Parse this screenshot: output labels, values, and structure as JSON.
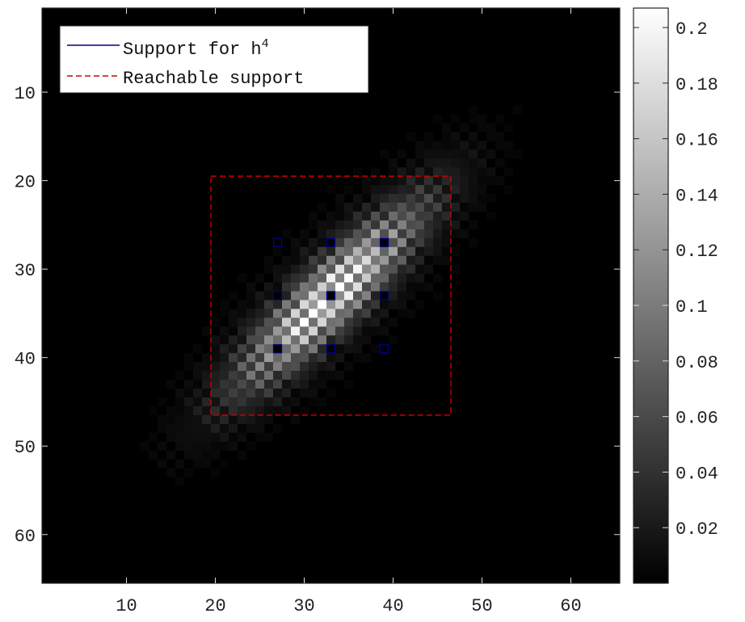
{
  "chart_data": {
    "type": "heatmap",
    "colormap": "gray",
    "grid_size": [
      65,
      65
    ],
    "xlim": [
      0.5,
      65.5
    ],
    "ylim": [
      0.5,
      65.5
    ],
    "y_direction": "reversed",
    "x_ticks": [
      10,
      20,
      30,
      40,
      50,
      60
    ],
    "x_tick_labels": [
      "10",
      "20",
      "30",
      "40",
      "50",
      "60"
    ],
    "y_ticks": [
      10,
      20,
      30,
      40,
      50,
      60
    ],
    "y_tick_labels": [
      "10",
      "20",
      "30",
      "40",
      "50",
      "60"
    ],
    "colorbar": {
      "range": [
        0,
        0.207
      ],
      "ticks": [
        0.02,
        0.04,
        0.06,
        0.08,
        0.1,
        0.12,
        0.14,
        0.16,
        0.18,
        0.2
      ],
      "tick_labels": [
        "0.02",
        "0.04",
        "0.06",
        "0.08",
        "0.1",
        "0.12",
        "0.14",
        "0.16",
        "0.18",
        "0.2"
      ]
    },
    "legend": {
      "placement": "top-left",
      "entries": [
        {
          "label": "Support for h",
          "label_superscript": "4",
          "style": "solid",
          "color": "#00008b"
        },
        {
          "label": "Reachable support",
          "style": "dashed",
          "color": "#cc0000"
        }
      ]
    },
    "support_points": [
      {
        "x": 27,
        "y": 27
      },
      {
        "x": 33,
        "y": 27
      },
      {
        "x": 39,
        "y": 27
      },
      {
        "x": 27,
        "y": 33
      },
      {
        "x": 33,
        "y": 33
      },
      {
        "x": 39,
        "y": 33
      },
      {
        "x": 27,
        "y": 39
      },
      {
        "x": 33,
        "y": 39
      },
      {
        "x": 39,
        "y": 39
      }
    ],
    "reachable_support": {
      "x_range": [
        19.5,
        46.5
      ],
      "y_range": [
        19.5,
        46.5
      ]
    },
    "band": {
      "center_x": 33,
      "center_y": 33,
      "direction": "anti-diagonal",
      "along_sigma": 9,
      "across_sigma": 2.2,
      "peak": 0.207
    },
    "grid": false
  }
}
